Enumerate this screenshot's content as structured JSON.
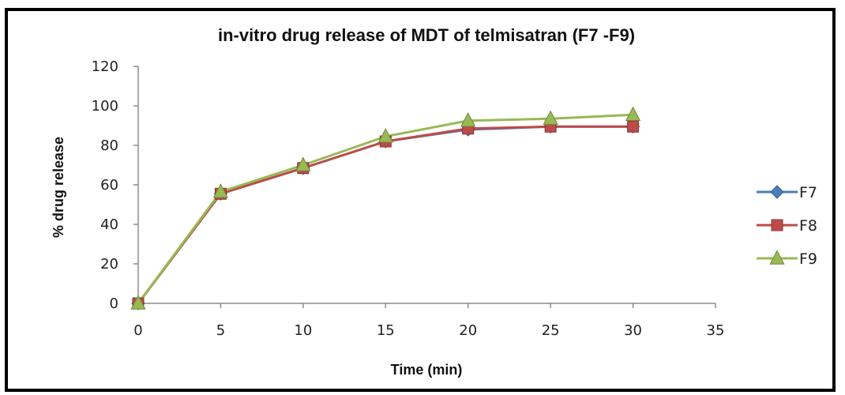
{
  "chart_data": {
    "type": "line",
    "title": "in-vitro drug release of MDT of telmisatran (F7 -F9)",
    "xlabel": "Time (min)",
    "ylabel": "% drug release",
    "xlim": [
      0,
      35
    ],
    "ylim": [
      0,
      120
    ],
    "x_ticks": [
      0,
      5,
      10,
      15,
      20,
      25,
      30,
      35
    ],
    "y_ticks": [
      0,
      20,
      40,
      60,
      80,
      100,
      120
    ],
    "grid": false,
    "legend_position": "right",
    "x": [
      0,
      5,
      10,
      15,
      20,
      25,
      30
    ],
    "series": [
      {
        "name": "F7",
        "color": "#4a7ebb",
        "marker": "diamond",
        "values": [
          0,
          55.5,
          68.5,
          82,
          88,
          89.5,
          89.5
        ]
      },
      {
        "name": "F8",
        "color": "#be4b48",
        "marker": "square",
        "values": [
          0,
          55.5,
          68.5,
          82,
          88.5,
          89.5,
          89.5
        ]
      },
      {
        "name": "F9",
        "color": "#98b954",
        "marker": "triangle",
        "values": [
          0,
          56.5,
          70,
          84.5,
          92.5,
          93.5,
          95.5
        ]
      }
    ]
  }
}
